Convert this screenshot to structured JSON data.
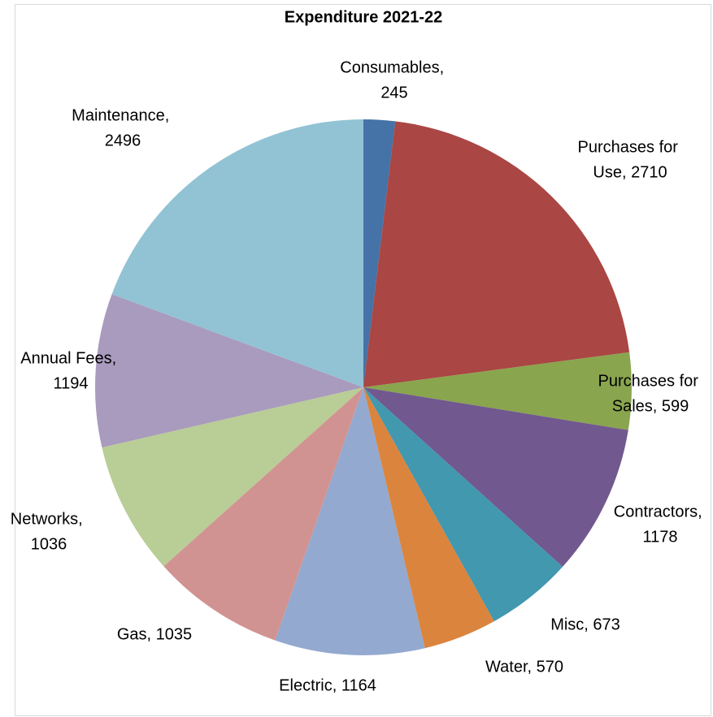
{
  "chart_data": {
    "type": "pie",
    "title": "Expenditure 2021-22",
    "categories": [
      "Consumables",
      "Purchases for Use",
      "Purchases for Sales",
      "Contractors",
      "Misc",
      "Water",
      "Electric",
      "Gas",
      "Networks",
      "Annual Fees",
      "Maintenance"
    ],
    "values": [
      245,
      2710,
      599,
      1178,
      673,
      570,
      1164,
      1035,
      1036,
      1194,
      2496
    ],
    "value_labels": [
      "Consumables, 245",
      "Purchases for Use, 2710",
      "Purchases for Sales, 599",
      "Contractors, 1178",
      "Misc, 673",
      "Water, 570",
      "Electric, 1164",
      "Gas, 1035",
      "Networks, 1036",
      "Annual Fees, 1194",
      "Maintenance, 2496"
    ],
    "colors": [
      "#4572a7",
      "#aa4643",
      "#89a54e",
      "#71588f",
      "#4198af",
      "#db843d",
      "#93a9cf",
      "#d19392",
      "#b9cd96",
      "#a99bbd",
      "#92c3d4"
    ]
  }
}
